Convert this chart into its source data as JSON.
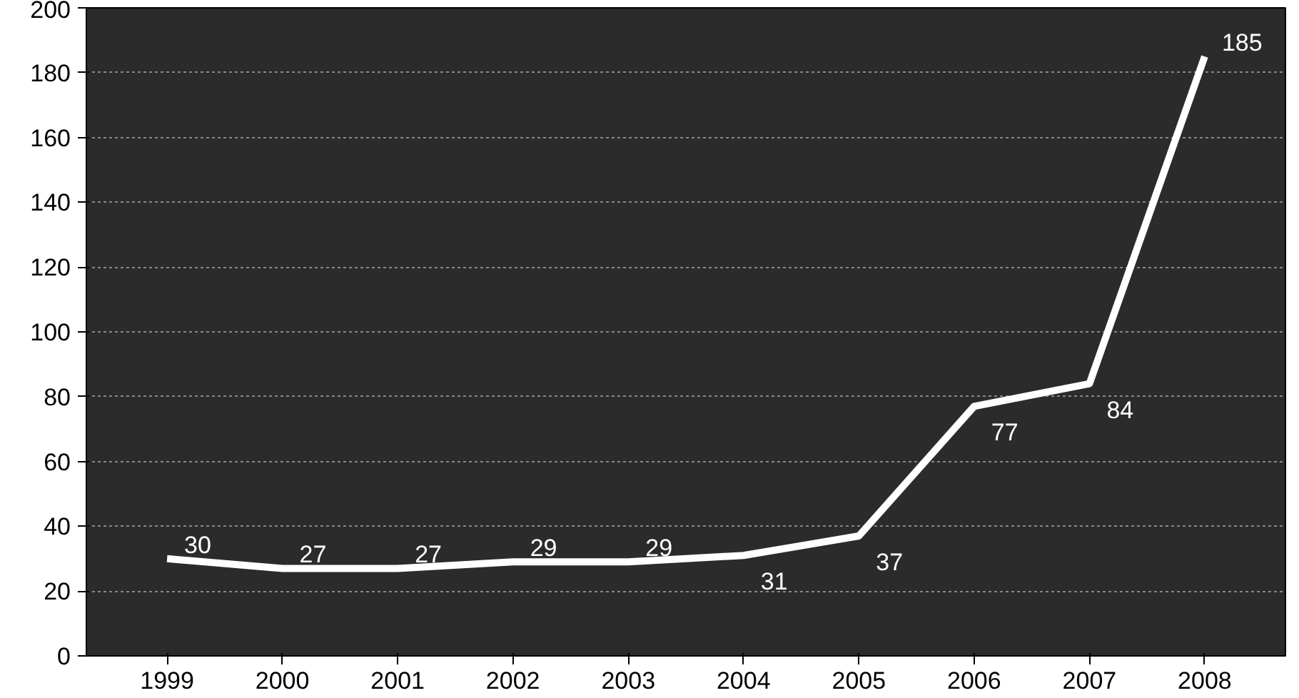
{
  "chart_data": {
    "type": "line",
    "categories": [
      "1999",
      "2000",
      "2001",
      "2002",
      "2003",
      "2004",
      "2005",
      "2006",
      "2007",
      "2008"
    ],
    "series": [
      {
        "color": "#ffffff",
        "values": [
          30,
          27,
          27,
          29,
          29,
          31,
          37,
          77,
          84,
          185
        ]
      }
    ],
    "ylim": [
      0,
      200
    ],
    "yticks": [
      0,
      20,
      40,
      60,
      80,
      100,
      120,
      140,
      160,
      180,
      200
    ],
    "grid": "y",
    "data_labels": true,
    "marker": "none",
    "line_style": "solid"
  }
}
